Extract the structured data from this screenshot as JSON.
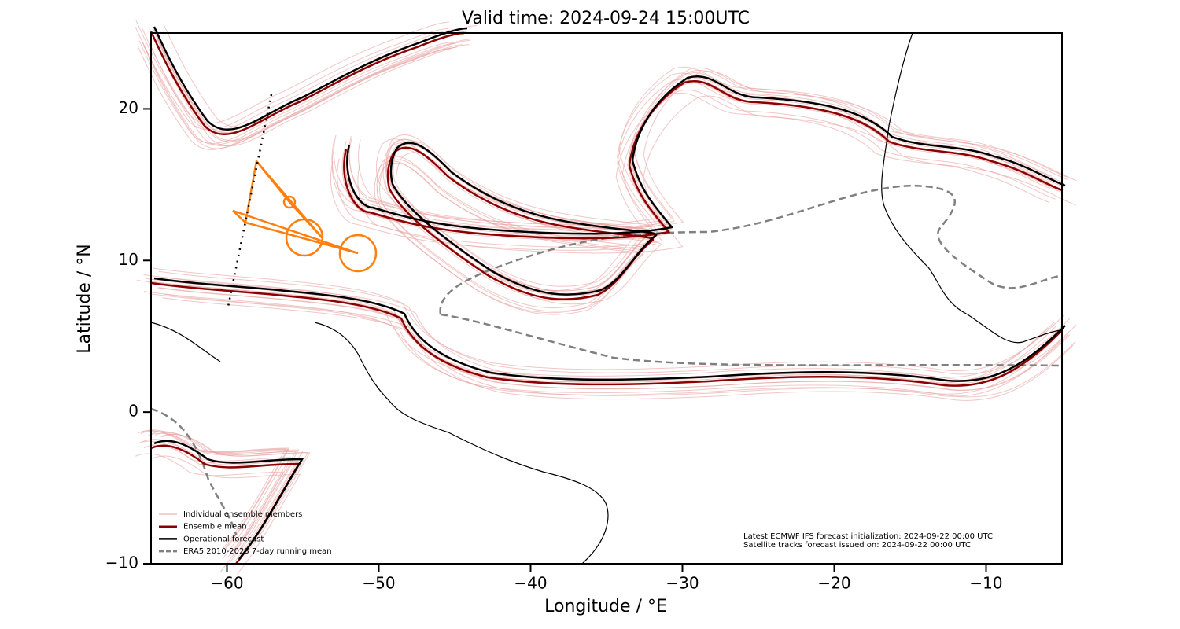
{
  "chart_data": {
    "type": "map",
    "title": "Valid time: 2024-09-24 15:00UTC",
    "x_label": "Longitude / °E",
    "y_label": "Latitude / °N",
    "xlim": [
      -65,
      -5
    ],
    "ylim": [
      -10,
      25
    ],
    "xticks": [
      {
        "value": -60,
        "label": "−60"
      },
      {
        "value": -50,
        "label": "−50"
      },
      {
        "value": -40,
        "label": "−40"
      },
      {
        "value": -30,
        "label": "−30"
      },
      {
        "value": -20,
        "label": "−20"
      },
      {
        "value": -10,
        "label": "−10"
      }
    ],
    "yticks": [
      {
        "value": -10,
        "label": "−10"
      },
      0,
      10,
      20
    ],
    "series": [
      {
        "name": "Individual ensemble members",
        "color": "#e8a0a0"
      },
      {
        "name": "Ensemble mean",
        "color": "#8b0000"
      },
      {
        "name": "Operational forecast",
        "color": "#000000"
      },
      {
        "name": "ERA5 2010-2023 7-day running mean",
        "color": "#808080"
      }
    ],
    "annotations": [
      "Latest ECMWF IFS forecast initialization: 2024-09-22 00:00 UTC",
      "Satellite tracks forecast issued on: 2024-09-22 00:00 UTC"
    ]
  }
}
